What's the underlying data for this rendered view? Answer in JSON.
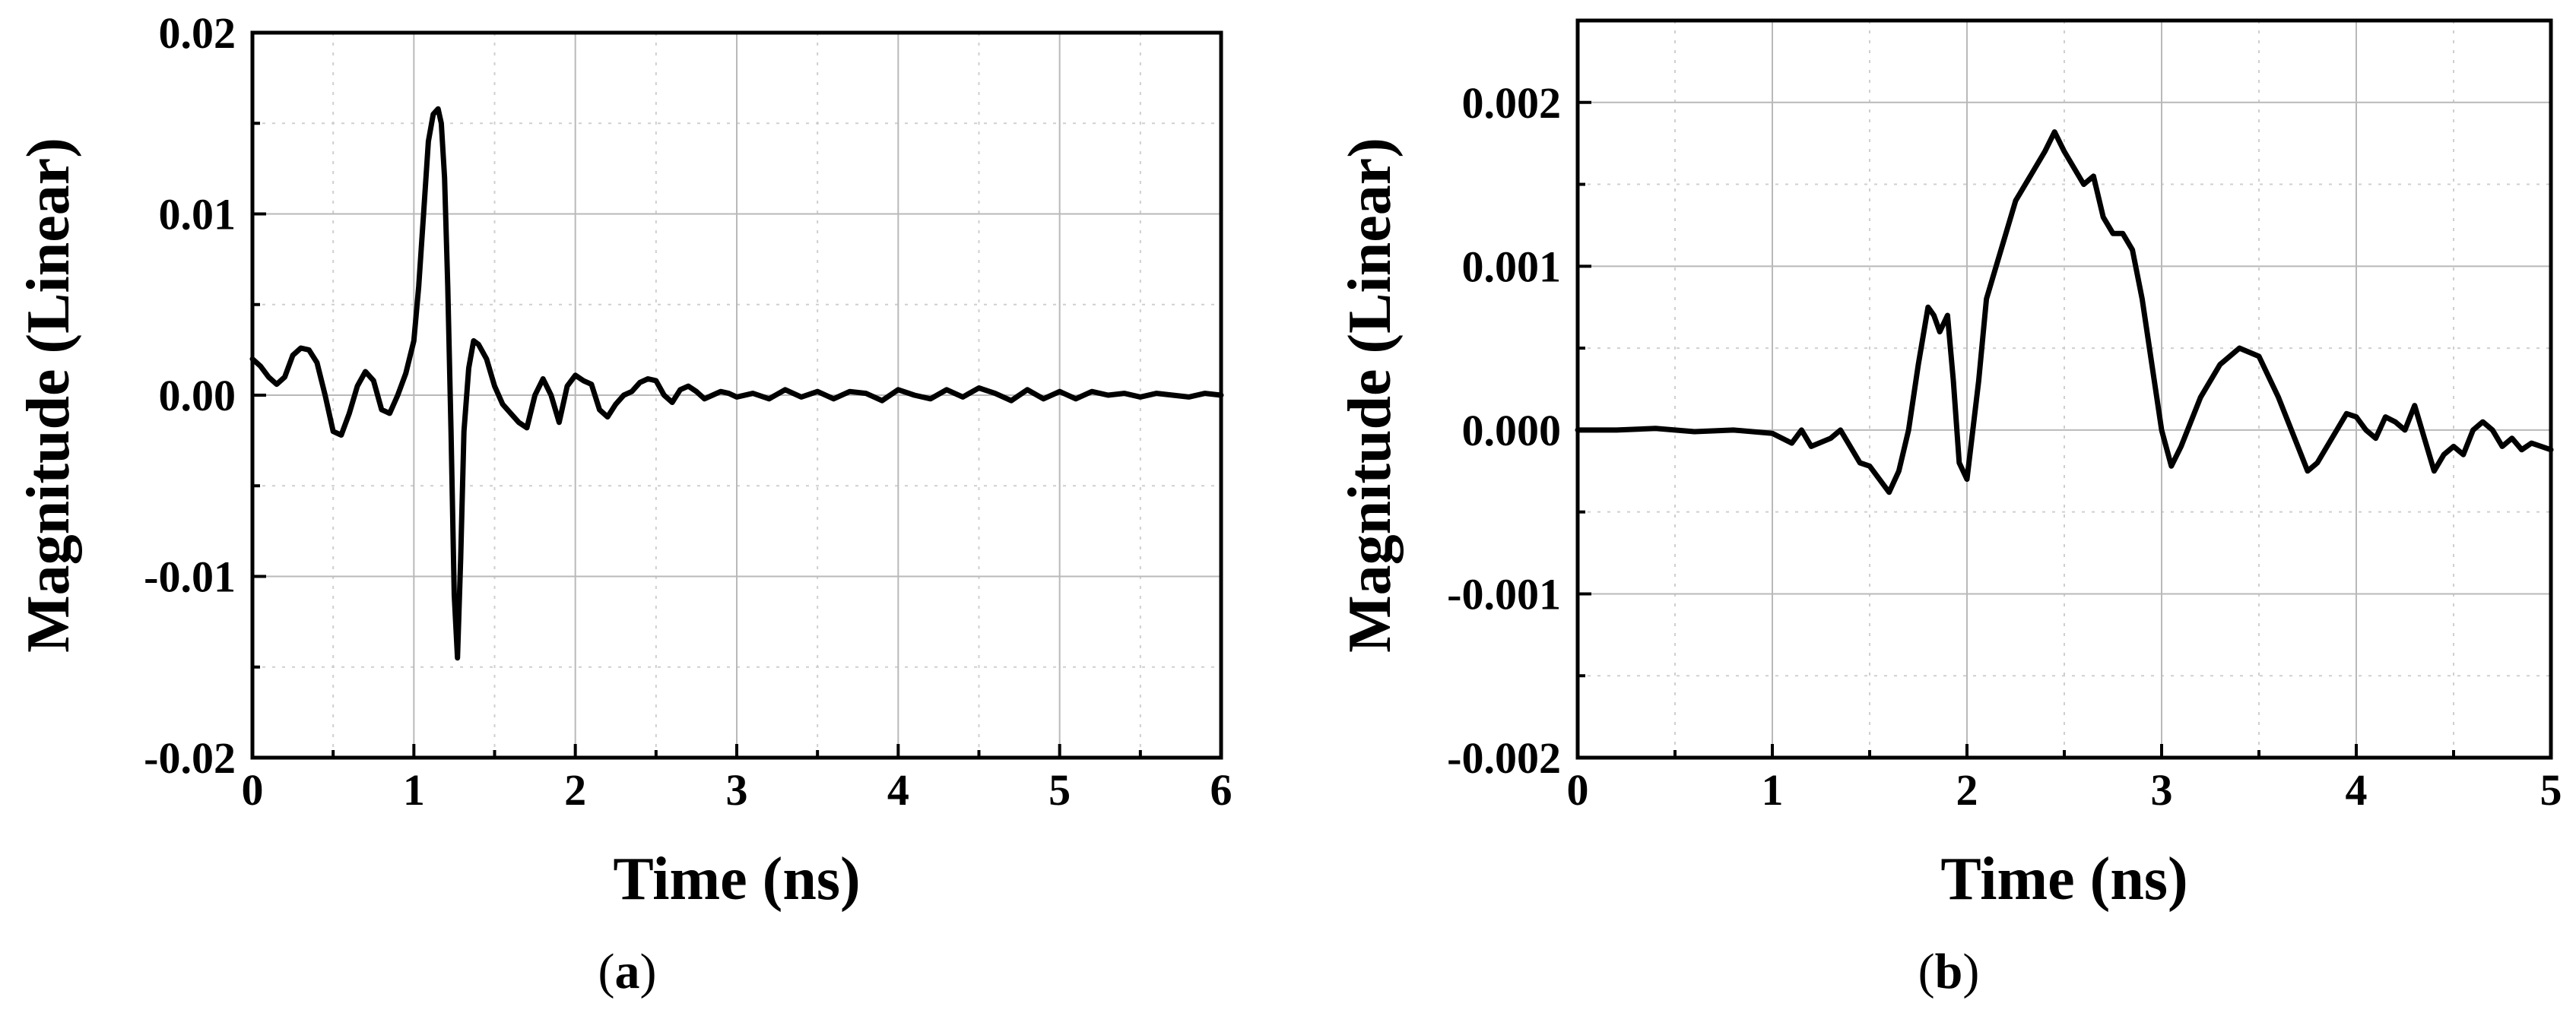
{
  "chart_data": [
    {
      "type": "line",
      "caption": "a",
      "xlabel": "Time (ns)",
      "ylabel": "Magnitude (Linear)",
      "xlim": [
        0,
        6
      ],
      "ylim": [
        -0.02,
        0.02
      ],
      "xticks": [
        0,
        1,
        2,
        3,
        4,
        5,
        6
      ],
      "xtick_labels": [
        "0",
        "1",
        "2",
        "3",
        "4",
        "5",
        "6"
      ],
      "yticks": [
        -0.02,
        -0.01,
        0.0,
        0.01,
        0.02
      ],
      "ytick_labels": [
        "-0.02",
        "-0.01",
        "0.00",
        "0.01",
        "0.02"
      ],
      "grid": true,
      "series": [
        {
          "x": [
            0,
            0.05,
            0.1,
            0.15,
            0.2,
            0.25,
            0.3,
            0.35,
            0.4,
            0.45,
            0.5,
            0.55,
            0.6,
            0.65,
            0.7,
            0.75,
            0.8,
            0.85,
            0.9,
            0.95,
            1.0,
            1.03,
            1.06,
            1.09,
            1.12,
            1.15,
            1.17,
            1.19,
            1.21,
            1.23,
            1.25,
            1.27,
            1.29,
            1.31,
            1.34,
            1.37,
            1.4,
            1.45,
            1.5,
            1.55,
            1.6,
            1.65,
            1.7,
            1.75,
            1.8,
            1.85,
            1.9,
            1.95,
            2.0,
            2.05,
            2.1,
            2.15,
            2.2,
            2.25,
            2.3,
            2.35,
            2.4,
            2.45,
            2.5,
            2.55,
            2.6,
            2.65,
            2.7,
            2.75,
            2.8,
            2.85,
            2.9,
            2.95,
            3.0,
            3.1,
            3.2,
            3.3,
            3.4,
            3.5,
            3.6,
            3.7,
            3.8,
            3.9,
            4.0,
            4.1,
            4.2,
            4.3,
            4.4,
            4.5,
            4.6,
            4.7,
            4.8,
            4.9,
            5.0,
            5.1,
            5.2,
            5.3,
            5.4,
            5.5,
            5.6,
            5.7,
            5.8,
            5.9,
            6.0
          ],
          "y": [
            0.002,
            0.0016,
            0.001,
            0.0006,
            0.001,
            0.0022,
            0.0026,
            0.0025,
            0.0018,
            0.0,
            -0.002,
            -0.0022,
            -0.001,
            0.0005,
            0.0013,
            0.0008,
            -0.0008,
            -0.001,
            0.0,
            0.0012,
            0.003,
            0.006,
            0.01,
            0.014,
            0.0155,
            0.0158,
            0.015,
            0.012,
            0.006,
            -0.002,
            -0.011,
            -0.0145,
            -0.009,
            -0.002,
            0.0015,
            0.003,
            0.0028,
            0.002,
            0.0005,
            -0.0005,
            -0.001,
            -0.0015,
            -0.0018,
            0.0,
            0.0009,
            0.0,
            -0.0015,
            0.0005,
            0.0011,
            0.0008,
            0.0006,
            -0.0008,
            -0.0012,
            -0.0005,
            0.0,
            0.0002,
            0.0007,
            0.0009,
            0.0008,
            0.0,
            -0.0004,
            0.0003,
            0.0005,
            0.0002,
            -0.0002,
            0.0,
            0.0002,
            0.0001,
            -0.0001,
            0.0001,
            -0.0002,
            0.0003,
            -0.0001,
            0.0002,
            -0.0002,
            0.0002,
            0.0001,
            -0.0003,
            0.0003,
            0.0,
            -0.0002,
            0.0003,
            -0.0001,
            0.0004,
            0.0001,
            -0.0003,
            0.0003,
            -0.0002,
            0.0002,
            -0.0002,
            0.0002,
            0.0,
            0.0001,
            -0.0001,
            0.0001,
            0.0,
            -0.0001,
            0.0001,
            0.0
          ]
        }
      ]
    },
    {
      "type": "line",
      "caption": "b",
      "xlabel": "Time (ns)",
      "ylabel": "Magnitude (Linear)",
      "xlim": [
        0,
        5
      ],
      "ylim": [
        -0.002,
        0.0025
      ],
      "xticks": [
        0,
        1,
        2,
        3,
        4,
        5
      ],
      "xtick_labels": [
        "0",
        "1",
        "2",
        "3",
        "4",
        "5"
      ],
      "yticks": [
        -0.002,
        -0.001,
        0.0,
        0.001,
        0.002
      ],
      "ytick_labels": [
        "-0.002",
        "-0.001",
        "0.000",
        "0.001",
        "0.002"
      ],
      "grid": true,
      "series": [
        {
          "x": [
            0,
            0.2,
            0.4,
            0.6,
            0.8,
            1.0,
            1.1,
            1.15,
            1.2,
            1.3,
            1.35,
            1.4,
            1.45,
            1.5,
            1.55,
            1.6,
            1.65,
            1.7,
            1.75,
            1.8,
            1.83,
            1.86,
            1.9,
            1.93,
            1.96,
            2.0,
            2.03,
            2.06,
            2.1,
            2.15,
            2.2,
            2.25,
            2.3,
            2.35,
            2.4,
            2.45,
            2.5,
            2.55,
            2.6,
            2.65,
            2.7,
            2.75,
            2.8,
            2.85,
            2.9,
            2.95,
            3.0,
            3.05,
            3.1,
            3.2,
            3.3,
            3.4,
            3.5,
            3.6,
            3.7,
            3.75,
            3.8,
            3.9,
            3.95,
            4.0,
            4.05,
            4.1,
            4.15,
            4.2,
            4.25,
            4.3,
            4.35,
            4.4,
            4.45,
            4.5,
            4.55,
            4.6,
            4.65,
            4.7,
            4.75,
            4.8,
            4.85,
            4.9,
            4.95,
            5.0
          ],
          "y": [
            0.0,
            0.0,
            1e-05,
            -1e-05,
            0.0,
            -2e-05,
            -8e-05,
            0.0,
            -0.0001,
            -5e-05,
            0.0,
            -0.0001,
            -0.0002,
            -0.00022,
            -0.0003,
            -0.00038,
            -0.00025,
            0.0,
            0.0004,
            0.00075,
            0.0007,
            0.0006,
            0.0007,
            0.0003,
            -0.0002,
            -0.0003,
            0.0,
            0.0003,
            0.0008,
            0.001,
            0.0012,
            0.0014,
            0.0015,
            0.0016,
            0.0017,
            0.00182,
            0.0017,
            0.0016,
            0.0015,
            0.00155,
            0.0013,
            0.0012,
            0.0012,
            0.0011,
            0.0008,
            0.0004,
            0.0,
            -0.00022,
            -0.0001,
            0.0002,
            0.0004,
            0.0005,
            0.00045,
            0.0002,
            -0.0001,
            -0.00025,
            -0.0002,
            0.0,
            0.0001,
            8e-05,
            0.0,
            -5e-05,
            8e-05,
            5e-05,
            0.0,
            0.00015,
            -5e-05,
            -0.00025,
            -0.00015,
            -0.0001,
            -0.00015,
            0.0,
            5e-05,
            0.0,
            -0.0001,
            -5e-05,
            -0.00012,
            -8e-05,
            -0.0001,
            -0.00012
          ]
        }
      ]
    }
  ]
}
